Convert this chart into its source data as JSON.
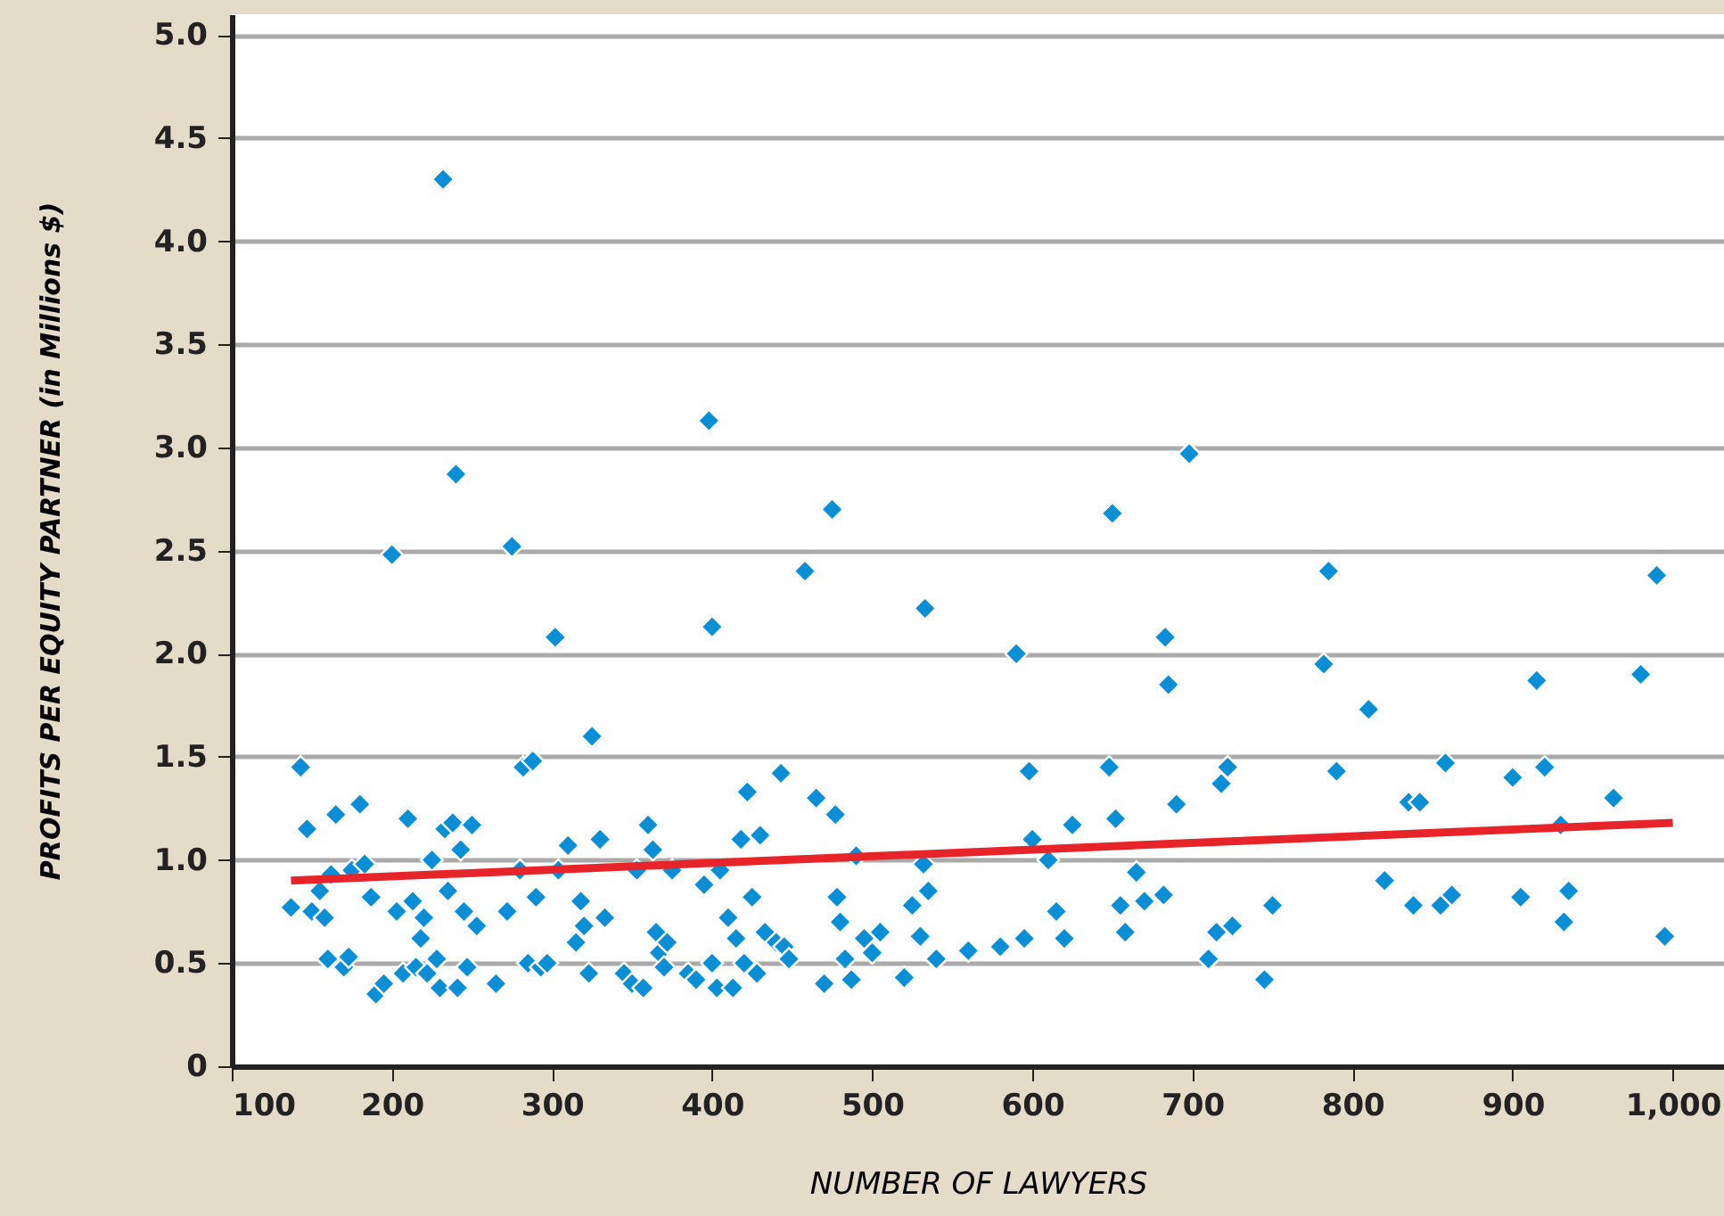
{
  "chart_data": {
    "type": "scatter",
    "xlabel": "NUMBER OF LAWYERS",
    "ylabel": "PROFITS PER EQUITY PARTNER  (in Millions $)",
    "xlim": [
      100,
      1032
    ],
    "ylim": [
      0,
      5.1
    ],
    "xticks": [
      100,
      200,
      300,
      400,
      500,
      600,
      700,
      800,
      900,
      {
        "value": 1000,
        "label": "1,000"
      }
    ],
    "yticks": [
      0,
      {
        "value": 0.5,
        "label": "0.5"
      },
      {
        "value": 1,
        "label": "1.0"
      },
      {
        "value": 1.5,
        "label": "1.5"
      },
      {
        "value": 2,
        "label": "2.0"
      },
      {
        "value": 2.5,
        "label": "2.5"
      },
      {
        "value": 3,
        "label": "3.0"
      },
      {
        "value": 3.5,
        "label": "3.5"
      },
      {
        "value": 4,
        "label": "4.0"
      },
      {
        "value": 4.5,
        "label": "4.5"
      },
      {
        "value": 5,
        "label": "5.0"
      }
    ],
    "grid": "y",
    "series": [
      {
        "marker": "diamond",
        "color": "#0a8fd6",
        "x": [
          137,
          143,
          147,
          150,
          155,
          158,
          160,
          162,
          165,
          170,
          173,
          175,
          180,
          183,
          187,
          190,
          195,
          200,
          203,
          207,
          210,
          213,
          215,
          218,
          220,
          222,
          225,
          228,
          230,
          232,
          233,
          235,
          238,
          240,
          241,
          243,
          245,
          247,
          250,
          253,
          265,
          272,
          275,
          280,
          282,
          285,
          288,
          290,
          293,
          297,
          302,
          304,
          310,
          315,
          318,
          320,
          323,
          325,
          330,
          333,
          345,
          350,
          353,
          357,
          360,
          363,
          365,
          367,
          370,
          372,
          375,
          385,
          390,
          395,
          398,
          400,
          400,
          403,
          405,
          410,
          413,
          415,
          418,
          420,
          422,
          425,
          428,
          430,
          433,
          440,
          443,
          445,
          448,
          458,
          465,
          470,
          475,
          477,
          478,
          480,
          483,
          487,
          490,
          495,
          500,
          505,
          520,
          525,
          530,
          532,
          533,
          535,
          540,
          560,
          580,
          590,
          595,
          598,
          600,
          610,
          615,
          620,
          625,
          648,
          650,
          652,
          655,
          658,
          665,
          670,
          683,
          685,
          682,
          690,
          698,
          710,
          715,
          718,
          722,
          725,
          745,
          750,
          782,
          785,
          790,
          810,
          820,
          835,
          838,
          842,
          855,
          858,
          862,
          900,
          905,
          915,
          920,
          930,
          932,
          935,
          963,
          980,
          990,
          995
        ],
        "values": [
          0.77,
          1.45,
          1.15,
          0.75,
          0.85,
          0.72,
          0.52,
          0.93,
          1.22,
          0.48,
          0.53,
          0.95,
          1.27,
          0.98,
          0.82,
          0.35,
          0.4,
          2.48,
          0.75,
          0.45,
          1.2,
          0.8,
          0.48,
          0.62,
          0.72,
          0.45,
          1.0,
          0.52,
          0.38,
          4.3,
          1.15,
          0.85,
          1.18,
          2.87,
          0.38,
          1.05,
          0.75,
          0.48,
          1.17,
          0.68,
          0.4,
          0.75,
          2.52,
          0.95,
          1.45,
          0.5,
          1.48,
          0.82,
          0.48,
          0.5,
          2.08,
          0.95,
          1.07,
          0.6,
          0.8,
          0.68,
          0.45,
          1.6,
          1.1,
          0.72,
          0.45,
          0.4,
          0.95,
          0.38,
          1.17,
          1.05,
          0.65,
          0.55,
          0.48,
          0.6,
          0.95,
          0.45,
          0.42,
          0.88,
          3.13,
          2.13,
          0.5,
          0.38,
          0.95,
          0.72,
          0.38,
          0.62,
          1.1,
          0.5,
          1.33,
          0.82,
          0.45,
          1.12,
          0.65,
          0.6,
          1.42,
          0.58,
          0.52,
          2.4,
          1.3,
          0.4,
          2.7,
          1.22,
          0.82,
          0.7,
          0.52,
          0.42,
          1.02,
          0.62,
          0.55,
          0.65,
          0.43,
          0.78,
          0.63,
          0.98,
          2.22,
          0.85,
          0.52,
          0.56,
          0.58,
          2.0,
          0.62,
          1.43,
          1.1,
          1.0,
          0.75,
          0.62,
          1.17,
          1.45,
          2.68,
          1.2,
          0.78,
          0.65,
          0.94,
          0.8,
          2.08,
          1.85,
          0.83,
          1.27,
          2.97,
          0.52,
          0.65,
          1.37,
          1.45,
          0.68,
          0.42,
          0.78,
          1.95,
          2.4,
          1.43,
          1.73,
          0.9,
          1.28,
          0.78,
          1.28,
          0.78,
          1.47,
          0.83,
          1.4,
          0.82,
          1.87,
          1.45,
          1.17,
          0.7,
          0.85,
          1.3,
          1.9,
          2.38,
          0.63
        ]
      },
      {
        "type": "line",
        "marker": "none",
        "color": "#e8242b",
        "x": [
          137,
          1000
        ],
        "values": [
          0.9,
          1.18
        ]
      }
    ]
  }
}
